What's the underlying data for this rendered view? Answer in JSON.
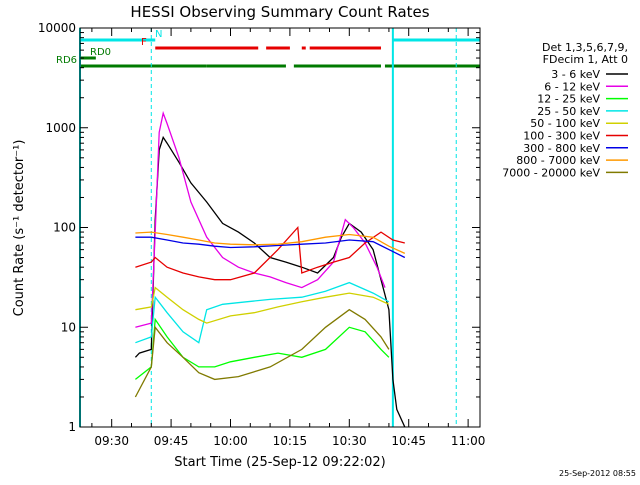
{
  "colors": {
    "background": "#ffffff",
    "axes": "#000000",
    "cyan": "#00e6e6",
    "red": "#e60000",
    "green": "#007a00"
  },
  "chart_data": {
    "type": "line",
    "title": "HESSI Observing Summary Count Rates",
    "xlabel": "Start Time (25-Sep-12 09:22:02)",
    "ylabel": "Count Rate (s⁻¹ detector⁻¹)",
    "yscale": "log",
    "ylim": [
      1,
      10000
    ],
    "xlim": [
      "09:22",
      "11:03"
    ],
    "x_ticks": [
      "09:30",
      "09:45",
      "10:00",
      "10:15",
      "10:30",
      "10:45",
      "11:00"
    ],
    "y_ticks": [
      "1",
      "10",
      "100",
      "1000",
      "10000"
    ],
    "legend_header": [
      "Det 1,3,5,6,7,9,",
      "FDecim 1, Att 0"
    ],
    "legend_placement": "right",
    "grid": false,
    "timestamp": "25-Sep-2012 08:55",
    "flags": {
      "N": {
        "label": "N",
        "color": "#00e6e6",
        "segments": [
          [
            "09:22",
            "09:41"
          ],
          [
            "10:41",
            "11:03"
          ]
        ]
      },
      "F": {
        "label": "F",
        "color": "#e60000",
        "segments": [
          [
            "09:41",
            "10:07"
          ],
          [
            "10:09",
            "10:15"
          ],
          [
            "10:18",
            "10:19"
          ],
          [
            "10:20",
            "10:38"
          ]
        ]
      },
      "RD0": {
        "label": "RD0",
        "color": "#007a00",
        "segments": [
          [
            "09:22",
            "09:26"
          ]
        ]
      },
      "RD6": {
        "label": "RD6",
        "color": "#007a00",
        "segments": [
          [
            "09:22",
            "09:54"
          ],
          [
            "09:54",
            "10:14"
          ],
          [
            "10:16",
            "10:38"
          ],
          [
            "10:39",
            "11:03"
          ]
        ]
      }
    },
    "vlines": [
      "09:40",
      "10:57"
    ],
    "series": [
      {
        "name": "3 - 6 keV",
        "color": "#000000",
        "x": [
          "09:36",
          "09:37",
          "09:40",
          "09:41",
          "09:42",
          "09:43",
          "09:44",
          "09:47",
          "09:50",
          "09:54",
          "09:58",
          "10:02",
          "10:06",
          "10:10",
          "10:14",
          "10:18",
          "10:22",
          "10:26",
          "10:28",
          "10:30",
          "10:33",
          "10:36",
          "10:38",
          "10:40",
          "10:41",
          "10:42",
          "10:44"
        ],
        "y": [
          5,
          5.5,
          6,
          120,
          600,
          800,
          700,
          450,
          280,
          180,
          110,
          90,
          70,
          50,
          45,
          40,
          35,
          50,
          80,
          110,
          90,
          60,
          30,
          15,
          3,
          1.5,
          1
        ]
      },
      {
        "name": "6 - 12 keV",
        "color": "#e600e6",
        "x": [
          "09:36",
          "09:40",
          "09:41",
          "09:42",
          "09:43",
          "09:44",
          "09:47",
          "09:50",
          "09:54",
          "09:58",
          "10:02",
          "10:06",
          "10:10",
          "10:14",
          "10:18",
          "10:22",
          "10:26",
          "10:29",
          "10:31",
          "10:34",
          "10:37",
          "10:39"
        ],
        "y": [
          10,
          11,
          90,
          900,
          1400,
          1100,
          500,
          180,
          80,
          50,
          40,
          35,
          32,
          28,
          25,
          30,
          45,
          120,
          100,
          70,
          40,
          25
        ]
      },
      {
        "name": "12 - 25 keV",
        "color": "#00ff00",
        "x": [
          "09:36",
          "09:40",
          "09:41",
          "09:44",
          "09:48",
          "09:52",
          "09:56",
          "10:00",
          "10:06",
          "10:12",
          "10:18",
          "10:24",
          "10:30",
          "10:34",
          "10:38",
          "10:40"
        ],
        "y": [
          3,
          4,
          12,
          8,
          5,
          4,
          4,
          4.5,
          5,
          5.5,
          5,
          6,
          10,
          9,
          6,
          5
        ]
      },
      {
        "name": "25 - 50 keV",
        "color": "#00e6e6",
        "x": [
          "09:36",
          "09:40",
          "09:41",
          "09:44",
          "09:48",
          "09:52",
          "09:54",
          "09:58",
          "10:04",
          "10:10",
          "10:18",
          "10:24",
          "10:30",
          "10:36",
          "10:40"
        ],
        "y": [
          7,
          8,
          20,
          14,
          9,
          7,
          15,
          17,
          18,
          19,
          20,
          23,
          28,
          22,
          18
        ]
      },
      {
        "name": "50 - 100 keV",
        "color": "#d0d000",
        "x": [
          "09:36",
          "09:40",
          "09:41",
          "09:44",
          "09:48",
          "09:52",
          "09:54",
          "10:00",
          "10:06",
          "10:12",
          "10:18",
          "10:24",
          "10:30",
          "10:36",
          "10:40"
        ],
        "y": [
          15,
          16,
          25,
          20,
          15,
          12,
          11,
          13,
          14,
          16,
          18,
          20,
          22,
          20,
          17
        ]
      },
      {
        "name": "100 - 300 keV",
        "color": "#e60000",
        "x": [
          "09:36",
          "09:40",
          "09:41",
          "09:44",
          "09:48",
          "09:52",
          "09:56",
          "10:00",
          "10:06",
          "10:12",
          "10:17",
          "10:18",
          "10:22",
          "10:26",
          "10:30",
          "10:34",
          "10:38",
          "10:41",
          "10:44"
        ],
        "y": [
          40,
          45,
          50,
          40,
          35,
          32,
          30,
          30,
          35,
          60,
          100,
          35,
          40,
          45,
          50,
          70,
          90,
          75,
          70
        ]
      },
      {
        "name": "300 - 800 keV",
        "color": "#0000e6",
        "x": [
          "09:36",
          "09:40",
          "09:44",
          "09:48",
          "09:52",
          "09:56",
          "10:00",
          "10:06",
          "10:12",
          "10:18",
          "10:24",
          "10:30",
          "10:36",
          "10:40",
          "10:44"
        ],
        "y": [
          80,
          80,
          75,
          70,
          68,
          65,
          63,
          64,
          66,
          68,
          70,
          75,
          72,
          60,
          50
        ]
      },
      {
        "name": "800 - 7000 keV",
        "color": "#ff9900",
        "x": [
          "09:36",
          "09:40",
          "09:44",
          "09:48",
          "09:52",
          "09:56",
          "10:00",
          "10:06",
          "10:12",
          "10:18",
          "10:24",
          "10:30",
          "10:36",
          "10:40",
          "10:44"
        ],
        "y": [
          88,
          90,
          85,
          80,
          75,
          70,
          68,
          67,
          68,
          72,
          80,
          85,
          80,
          65,
          55
        ]
      },
      {
        "name": "7000 - 20000 keV",
        "color": "#807a00",
        "x": [
          "09:36",
          "09:40",
          "09:41",
          "09:44",
          "09:48",
          "09:52",
          "09:56",
          "10:02",
          "10:10",
          "10:18",
          "10:24",
          "10:30",
          "10:34",
          "10:38",
          "10:40"
        ],
        "y": [
          2,
          4,
          10,
          7,
          5,
          3.5,
          3,
          3.2,
          4,
          6,
          10,
          15,
          12,
          8,
          6
        ]
      }
    ]
  }
}
